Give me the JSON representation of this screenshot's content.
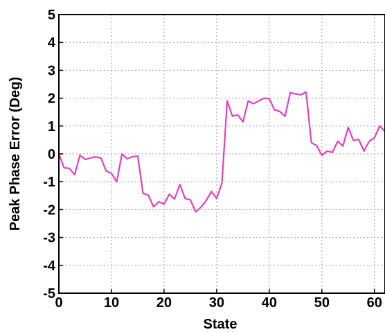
{
  "chart_data": {
    "type": "line",
    "title": "",
    "xlabel": "State",
    "ylabel": "Peak Phase Error (Deg)",
    "xlim": [
      0,
      62
    ],
    "ylim": [
      -5,
      5
    ],
    "xticks": [
      0,
      10,
      20,
      30,
      40,
      50,
      60
    ],
    "yticks": [
      -5,
      -4,
      -3,
      -2,
      -1,
      0,
      1,
      2,
      3,
      4,
      5
    ],
    "grid": true,
    "series": [
      {
        "name": "",
        "color": "#e040c0",
        "x": [
          0,
          1,
          2,
          3,
          4,
          5,
          6,
          7,
          8,
          9,
          10,
          11,
          12,
          13,
          14,
          15,
          16,
          17,
          18,
          19,
          20,
          21,
          22,
          23,
          24,
          25,
          26,
          27,
          28,
          29,
          30,
          31,
          32,
          33,
          34,
          35,
          36,
          37,
          38,
          39,
          40,
          41,
          42,
          43,
          44,
          45,
          46,
          47,
          48,
          49,
          50,
          51,
          52,
          53,
          54,
          55,
          56,
          57,
          58,
          59,
          60,
          61,
          62
        ],
        "y": [
          0.0,
          -0.5,
          -0.52,
          -0.75,
          -0.05,
          -0.2,
          -0.15,
          -0.1,
          -0.15,
          -0.62,
          -0.7,
          -1.0,
          0.0,
          -0.18,
          -0.1,
          -0.08,
          -1.42,
          -1.48,
          -1.9,
          -1.72,
          -1.8,
          -1.45,
          -1.62,
          -1.1,
          -1.6,
          -1.65,
          -2.08,
          -1.92,
          -1.68,
          -1.35,
          -1.6,
          -1.05,
          1.9,
          1.35,
          1.4,
          1.15,
          1.9,
          1.8,
          1.9,
          2.0,
          1.98,
          1.58,
          1.52,
          1.35,
          2.2,
          2.15,
          2.12,
          2.22,
          0.4,
          0.3,
          -0.05,
          0.1,
          0.05,
          0.45,
          0.28,
          0.95,
          0.48,
          0.52,
          0.1,
          0.45,
          0.58,
          1.0,
          0.8
        ]
      }
    ]
  }
}
